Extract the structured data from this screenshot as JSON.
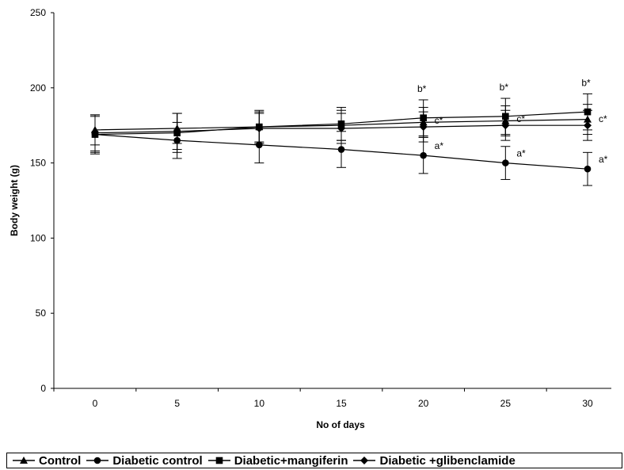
{
  "chart_data": {
    "type": "line",
    "title": "",
    "xlabel": "No of days",
    "ylabel": "Body weight (g)",
    "x": [
      0,
      5,
      10,
      15,
      20,
      25,
      30
    ],
    "x_ticks": [
      "0",
      "5",
      "10",
      "15",
      "20",
      "25",
      "30"
    ],
    "ylim": [
      0,
      250
    ],
    "y_ticks": [
      "0",
      "50",
      "100",
      "150",
      "200",
      "250"
    ],
    "grid": false,
    "legend_position": "bottom",
    "series": [
      {
        "name": "Control",
        "marker": "triangle",
        "values": [
          172,
          173,
          174,
          175,
          177,
          178,
          179
        ],
        "error": [
          10,
          10,
          10,
          10,
          10,
          10,
          10
        ]
      },
      {
        "name": "Diabetic control",
        "marker": "circle",
        "values": [
          169,
          165,
          162,
          159,
          155,
          150,
          146
        ],
        "error": [
          12,
          12,
          12,
          12,
          12,
          11,
          11
        ]
      },
      {
        "name": "Diabetic+mangiferin",
        "marker": "square",
        "values": [
          169,
          170,
          174,
          176,
          180,
          181,
          184
        ],
        "error": [
          13,
          13,
          11,
          11,
          12,
          12,
          12
        ]
      },
      {
        "name": "Diabetic +glibenclamide",
        "marker": "diamond",
        "values": [
          170,
          171,
          173,
          173,
          174,
          175,
          175
        ],
        "error": [
          12,
          12,
          10,
          10,
          10,
          10,
          10
        ]
      }
    ],
    "annotations": [
      {
        "text": "b*",
        "x": 20,
        "series": "Diabetic+mangiferin",
        "place": "above"
      },
      {
        "text": "c*",
        "x": 20,
        "series": "Diabetic +glibenclamide",
        "place": "right"
      },
      {
        "text": "a*",
        "x": 20,
        "series": "Diabetic control",
        "place": "right"
      },
      {
        "text": "b*",
        "x": 25,
        "series": "Diabetic+mangiferin",
        "place": "above"
      },
      {
        "text": "c*",
        "x": 25,
        "series": "Diabetic +glibenclamide",
        "place": "right"
      },
      {
        "text": "a*",
        "x": 25,
        "series": "Diabetic control",
        "place": "right"
      },
      {
        "text": "b*",
        "x": 30,
        "series": "Diabetic+mangiferin",
        "place": "above"
      },
      {
        "text": "c*",
        "x": 30,
        "series": "Diabetic +glibenclamide",
        "place": "right"
      },
      {
        "text": "a*",
        "x": 30,
        "series": "Diabetic control",
        "place": "right"
      }
    ]
  }
}
